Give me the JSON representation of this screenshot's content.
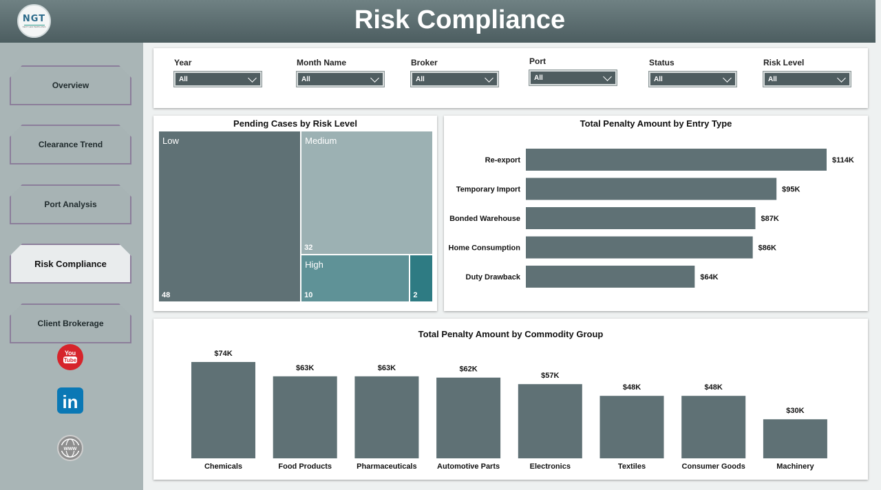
{
  "header": {
    "title": "Risk Compliance",
    "logo_text": "NGT",
    "logo_subtitle": "NEXT GEN TEMPLATES"
  },
  "sidebar": {
    "items": [
      {
        "label": "Overview",
        "active": false
      },
      {
        "label": "Clearance Trend",
        "active": false
      },
      {
        "label": "Port Analysis",
        "active": false
      },
      {
        "label": "Risk Compliance",
        "active": true
      },
      {
        "label": "Client Brokerage",
        "active": false
      }
    ],
    "social": {
      "youtube_label": "You Tube",
      "youtube_icon": "youtube-icon",
      "linkedin_label": "in",
      "linkedin_icon": "linkedin-icon",
      "web_icon": "globe-icon",
      "web_label": "www"
    }
  },
  "filters": [
    {
      "label": "Year",
      "value": "All"
    },
    {
      "label": "Month Name",
      "value": "All"
    },
    {
      "label": "Broker",
      "value": "All"
    },
    {
      "label": "Port",
      "value": "All"
    },
    {
      "label": "Status",
      "value": "All"
    },
    {
      "label": "Risk Level",
      "value": "All"
    }
  ],
  "colors": {
    "bar": "#5f7175",
    "header": "#5a6b6e",
    "accent_teal": "#2e7b83"
  },
  "chart_data": [
    {
      "type": "treemap",
      "title": "Pending Cases by Risk Level",
      "items": [
        {
          "name": "Low",
          "value": 48,
          "color": "#5f7175"
        },
        {
          "name": "Medium",
          "value": 32,
          "color": "#9cb1b3"
        },
        {
          "name": "High",
          "value": 10,
          "color": "#5f9297"
        },
        {
          "name": "",
          "value": 2,
          "color": "#2e7b83"
        }
      ]
    },
    {
      "type": "bar",
      "orientation": "horizontal",
      "title": "Total Penalty Amount by Entry Type",
      "categories": [
        "Re-export",
        "Temporary Import",
        "Bonded Warehouse",
        "Home Consumption",
        "Duty Drawback"
      ],
      "values": [
        114,
        95,
        87,
        86,
        64
      ],
      "labels": [
        "$114K",
        "$95K",
        "$87K",
        "$86K",
        "$64K"
      ]
    },
    {
      "type": "bar",
      "orientation": "vertical",
      "title": "Total Penalty Amount by Commodity Group",
      "categories": [
        "Chemicals",
        "Food Products",
        "Pharmaceuticals",
        "Automotive Parts",
        "Electronics",
        "Textiles",
        "Consumer Goods",
        "Machinery"
      ],
      "values": [
        74,
        63,
        63,
        62,
        57,
        48,
        48,
        30
      ],
      "labels": [
        "$74K",
        "$63K",
        "$63K",
        "$62K",
        "$57K",
        "$48K",
        "$48K",
        "$30K"
      ]
    }
  ]
}
